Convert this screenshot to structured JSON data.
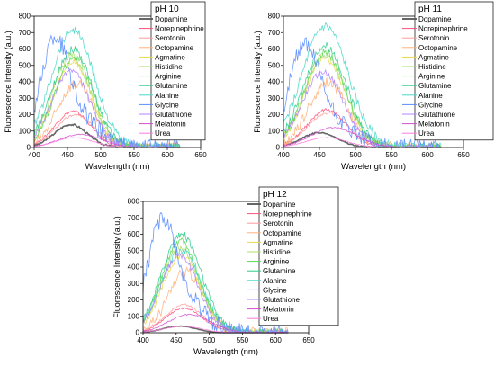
{
  "legend_entries": [
    "Dopamine",
    "Norepinephrine",
    "Serotonin",
    "Octopamine",
    "Agmatine",
    "Histidine",
    "Arginine",
    "Glutamine",
    "Alanine",
    "Glycine",
    "Glutathione",
    "Melatonin",
    "Urea"
  ],
  "series_colors": {
    "Dopamine": "#555555",
    "Norepinephrine": "#ff4f7a",
    "Serotonin": "#ff9a9a",
    "Octopamine": "#ffb07a",
    "Agmatine": "#e8d84a",
    "Histidine": "#a9e06a",
    "Arginine": "#58d858",
    "Glutamine": "#2ecc8a",
    "Alanine": "#48d8c8",
    "Glycine": "#5a8cff",
    "Glutathione": "#b084ff",
    "Melatonin": "#d04fd0",
    "Urea": "#ff7ae0"
  },
  "chart_data": [
    {
      "type": "line",
      "title": "pH 10",
      "xlabel": "Wavelength (nm)",
      "ylabel": "Fluorescence Intensity (a.u.)",
      "xlim": [
        400,
        650
      ],
      "ylim": [
        0,
        800
      ],
      "xticks": [
        "400",
        "450",
        "500",
        "550",
        "600",
        "650"
      ],
      "yticks": [
        "0",
        "100",
        "200",
        "300",
        "400",
        "500",
        "600",
        "700",
        "800"
      ],
      "grid": false,
      "legend_placement": "top-right",
      "series": [
        {
          "name": "Dopamine",
          "peak": 140,
          "center": 455,
          "width": 35
        },
        {
          "name": "Norepinephrine",
          "peak": 220,
          "center": 458,
          "width": 38
        },
        {
          "name": "Serotonin",
          "peak": 200,
          "center": 462,
          "width": 40
        },
        {
          "name": "Octopamine",
          "peak": 390,
          "center": 462,
          "width": 38
        },
        {
          "name": "Agmatine",
          "peak": 520,
          "center": 458,
          "width": 40
        },
        {
          "name": "Histidine",
          "peak": 560,
          "center": 456,
          "width": 40
        },
        {
          "name": "Arginine",
          "peak": 550,
          "center": 460,
          "width": 40
        },
        {
          "name": "Glutamine",
          "peak": 600,
          "center": 458,
          "width": 42
        },
        {
          "name": "Alanine",
          "peak": 720,
          "center": 458,
          "width": 45
        },
        {
          "name": "Glycine",
          "peak": 620,
          "center": 430,
          "width": 30
        },
        {
          "name": "Glutathione",
          "peak": 470,
          "center": 455,
          "width": 40
        },
        {
          "name": "Melatonin",
          "peak": 80,
          "center": 470,
          "width": 45
        },
        {
          "name": "Urea",
          "peak": 60,
          "center": 460,
          "width": 40
        }
      ]
    },
    {
      "type": "line",
      "title": "pH 11",
      "xlabel": "Wavelength (nm)",
      "ylabel": "Fluorescence Intensity (a.u.)",
      "xlim": [
        400,
        650
      ],
      "ylim": [
        0,
        800
      ],
      "xticks": [
        "400",
        "450",
        "500",
        "550",
        "600",
        "650"
      ],
      "yticks": [
        "0",
        "100",
        "200",
        "300",
        "400",
        "500",
        "600",
        "700",
        "800"
      ],
      "grid": false,
      "legend_placement": "top-right",
      "series": [
        {
          "name": "Dopamine",
          "peak": 90,
          "center": 450,
          "width": 35
        },
        {
          "name": "Norepinephrine",
          "peak": 230,
          "center": 460,
          "width": 38
        },
        {
          "name": "Serotonin",
          "peak": 210,
          "center": 462,
          "width": 40
        },
        {
          "name": "Octopamine",
          "peak": 400,
          "center": 462,
          "width": 38
        },
        {
          "name": "Agmatine",
          "peak": 540,
          "center": 458,
          "width": 40
        },
        {
          "name": "Histidine",
          "peak": 560,
          "center": 458,
          "width": 40
        },
        {
          "name": "Arginine",
          "peak": 580,
          "center": 458,
          "width": 40
        },
        {
          "name": "Glutamine",
          "peak": 620,
          "center": 458,
          "width": 42
        },
        {
          "name": "Alanine",
          "peak": 740,
          "center": 458,
          "width": 45
        },
        {
          "name": "Glycine",
          "peak": 580,
          "center": 428,
          "width": 30
        },
        {
          "name": "Glutathione",
          "peak": 460,
          "center": 455,
          "width": 40
        },
        {
          "name": "Melatonin",
          "peak": 120,
          "center": 470,
          "width": 45
        },
        {
          "name": "Urea",
          "peak": 60,
          "center": 460,
          "width": 40
        }
      ]
    },
    {
      "type": "line",
      "title": "pH 12",
      "xlabel": "Wavelength (nm)",
      "ylabel": "Fluorescence Intensity (a.u.)",
      "xlim": [
        400,
        650
      ],
      "ylim": [
        0,
        800
      ],
      "xticks": [
        "400",
        "450",
        "500",
        "550",
        "600",
        "650"
      ],
      "yticks": [
        "0",
        "100",
        "200",
        "300",
        "400",
        "500",
        "600",
        "700",
        "800"
      ],
      "grid": false,
      "legend_placement": "top-right",
      "series": [
        {
          "name": "Dopamine",
          "peak": 40,
          "center": 455,
          "width": 35
        },
        {
          "name": "Norepinephrine",
          "peak": 150,
          "center": 462,
          "width": 40
        },
        {
          "name": "Serotonin",
          "peak": 170,
          "center": 462,
          "width": 40
        },
        {
          "name": "Octopamine",
          "peak": 370,
          "center": 465,
          "width": 38
        },
        {
          "name": "Agmatine",
          "peak": 470,
          "center": 458,
          "width": 40
        },
        {
          "name": "Histidine",
          "peak": 520,
          "center": 456,
          "width": 40
        },
        {
          "name": "Arginine",
          "peak": 560,
          "center": 456,
          "width": 40
        },
        {
          "name": "Glutamine",
          "peak": 600,
          "center": 458,
          "width": 42
        },
        {
          "name": "Alanine",
          "peak": 500,
          "center": 458,
          "width": 42
        },
        {
          "name": "Glycine",
          "peak": 650,
          "center": 428,
          "width": 30
        },
        {
          "name": "Glutathione",
          "peak": 470,
          "center": 455,
          "width": 40
        },
        {
          "name": "Melatonin",
          "peak": 110,
          "center": 470,
          "width": 45
        },
        {
          "name": "Urea",
          "peak": 40,
          "center": 460,
          "width": 40
        }
      ]
    }
  ]
}
